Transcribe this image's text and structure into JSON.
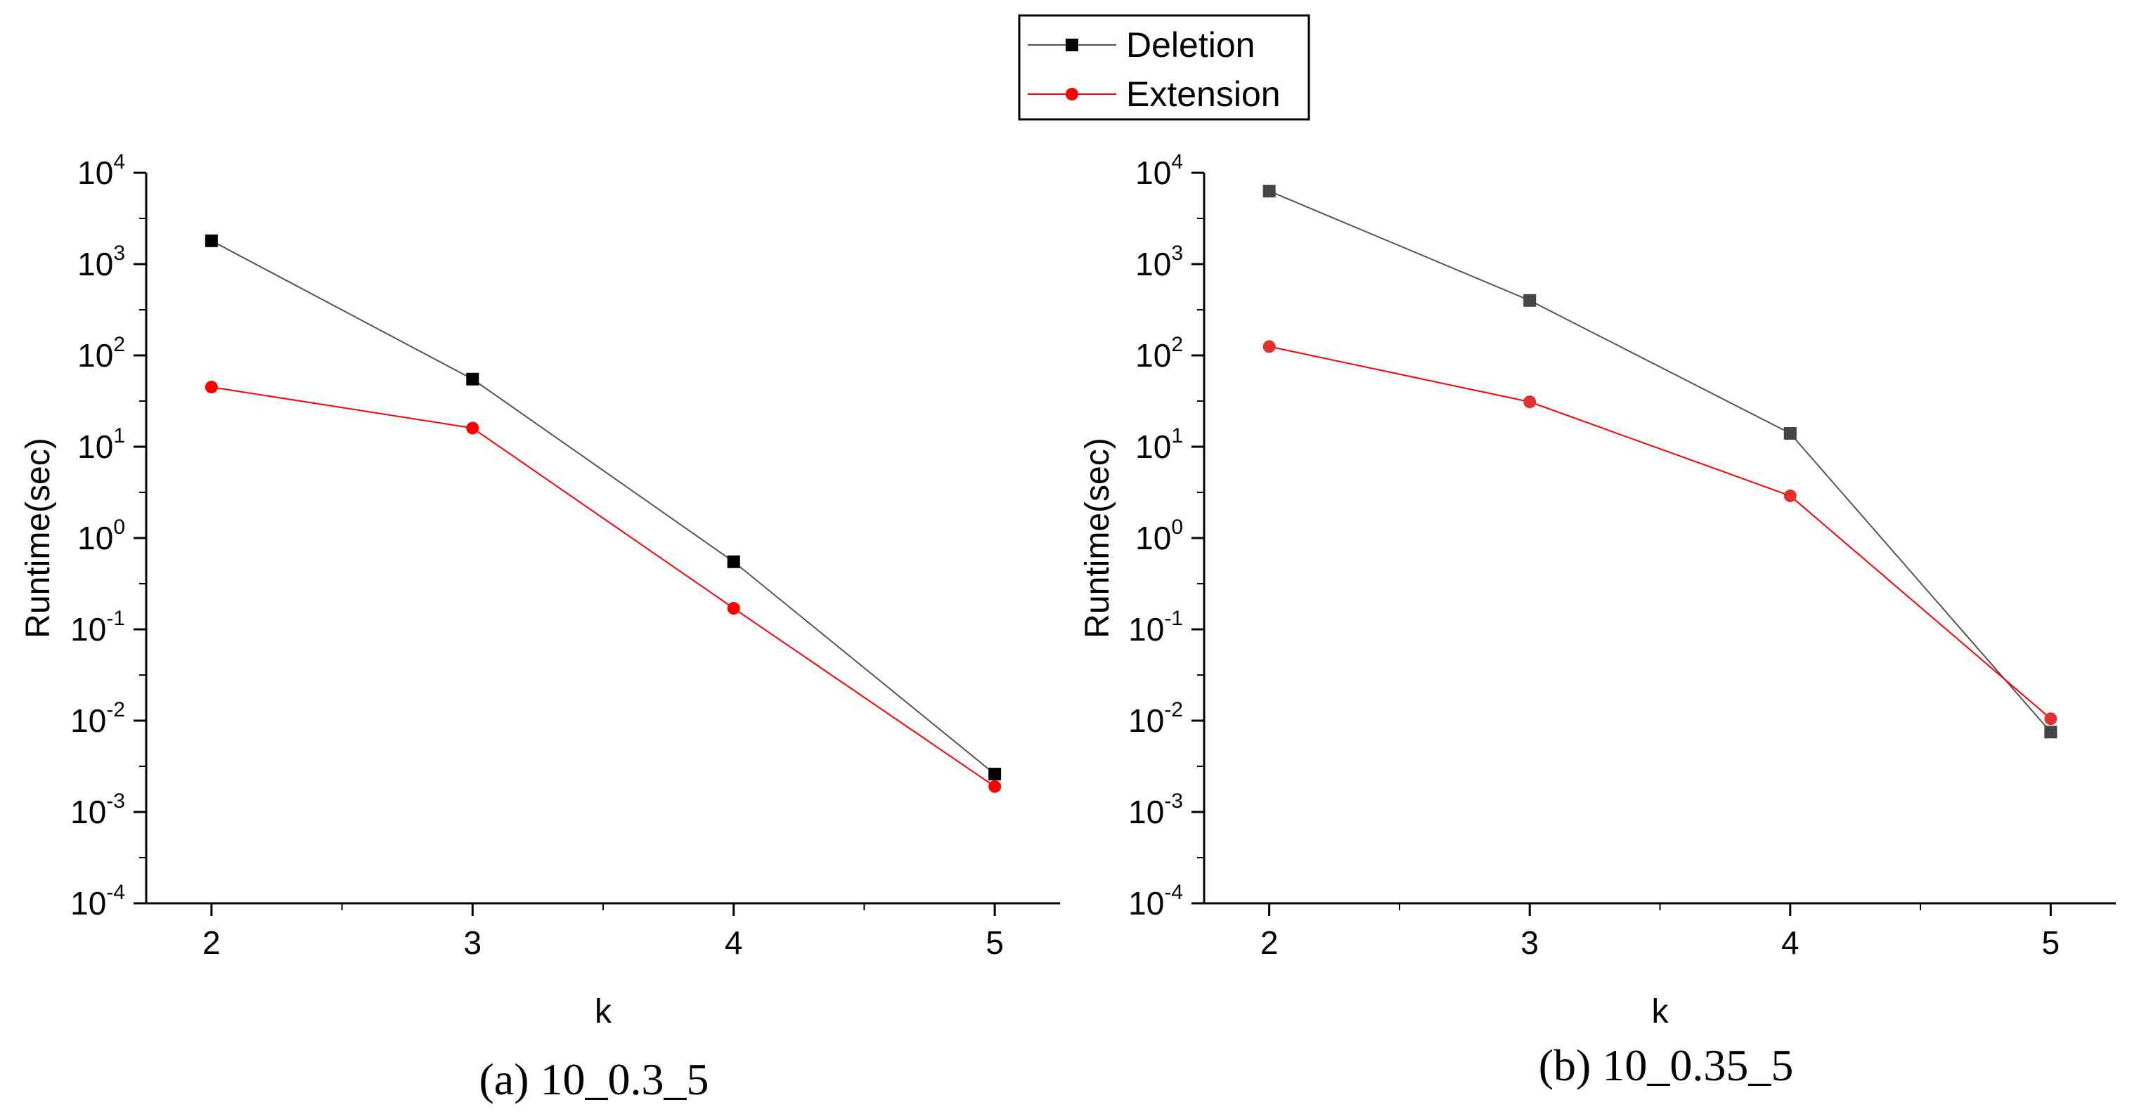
{
  "legend": {
    "entries": [
      {
        "label": "Deletion",
        "color": "#000000",
        "line_color": "#555555",
        "marker": "square"
      },
      {
        "label": "Extension",
        "color": "#ff0000",
        "line_color": "#ff0000",
        "marker": "circle"
      }
    ]
  },
  "chart_data": [
    {
      "type": "line",
      "caption": "(a) 10_0.3_5",
      "xlabel": "k",
      "ylabel": "Runtime(sec)",
      "yscale": "log",
      "xlim": [
        1.75,
        5.25
      ],
      "ylim": [
        0.0001,
        10000
      ],
      "x": [
        2,
        3,
        4,
        5
      ],
      "xticks": [
        "2",
        "3",
        "4",
        "5"
      ],
      "yticks": [
        {
          "base": "10",
          "exp": "4"
        },
        {
          "base": "10",
          "exp": "3"
        },
        {
          "base": "10",
          "exp": "2"
        },
        {
          "base": "10",
          "exp": "1"
        },
        {
          "base": "10",
          "exp": "0"
        },
        {
          "base": "10",
          "exp": "-1"
        },
        {
          "base": "10",
          "exp": "-2"
        },
        {
          "base": "10",
          "exp": "-3"
        },
        {
          "base": "10",
          "exp": "-4"
        }
      ],
      "series": [
        {
          "name": "Deletion",
          "values": [
            1800,
            55,
            0.55,
            0.0026
          ]
        },
        {
          "name": "Extension",
          "values": [
            45,
            16,
            0.17,
            0.0019
          ]
        }
      ]
    },
    {
      "type": "line",
      "caption": "(b) 10_0.35_5",
      "xlabel": "k",
      "ylabel": "Runtime(sec)",
      "yscale": "log",
      "xlim": [
        1.75,
        5.25
      ],
      "ylim": [
        0.0001,
        10000
      ],
      "x": [
        2,
        3,
        4,
        5
      ],
      "xticks": [
        "2",
        "3",
        "4",
        "5"
      ],
      "yticks": [
        {
          "base": "10",
          "exp": "4"
        },
        {
          "base": "10",
          "exp": "3"
        },
        {
          "base": "10",
          "exp": "2"
        },
        {
          "base": "10",
          "exp": "1"
        },
        {
          "base": "10",
          "exp": "0"
        },
        {
          "base": "10",
          "exp": "-1"
        },
        {
          "base": "10",
          "exp": "-2"
        },
        {
          "base": "10",
          "exp": "-3"
        },
        {
          "base": "10",
          "exp": "-4"
        }
      ],
      "series": [
        {
          "name": "Deletion",
          "values": [
            6300,
            400,
            14,
            0.0075
          ]
        },
        {
          "name": "Extension",
          "values": [
            125,
            31,
            2.9,
            0.0105
          ]
        }
      ]
    }
  ]
}
